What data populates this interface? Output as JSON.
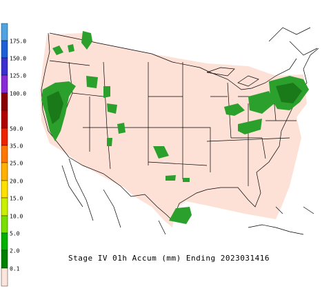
{
  "caption": "Stage IV 01h Accum (mm) Ending 2023031416",
  "legend": {
    "labels": [
      "175.0",
      "150.0",
      "125.0",
      "100.0",
      "50.0",
      "35.0",
      "25.0",
      "20.0",
      "15.0",
      "10.0",
      "5.0",
      "2.0",
      "0.1"
    ]
  }
}
